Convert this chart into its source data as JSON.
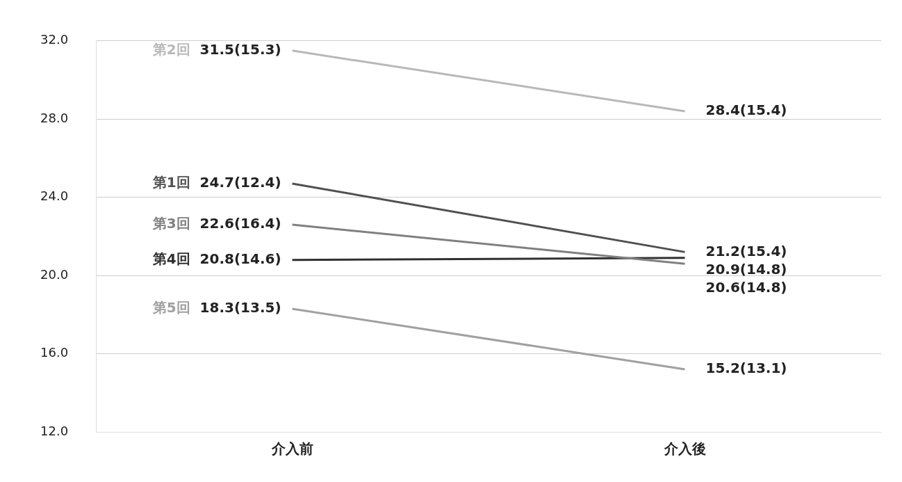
{
  "chart_data": {
    "type": "line",
    "categories": [
      "介入前",
      "介入後"
    ],
    "series": [
      {
        "name": "第1回",
        "color": "#505050",
        "values": [
          24.7,
          21.2
        ],
        "value_labels": [
          "24.7(12.4)",
          "21.2(15.4)"
        ]
      },
      {
        "name": "第2回",
        "color": "#b8b8b8",
        "values": [
          31.5,
          28.4
        ],
        "value_labels": [
          "31.5(15.3)",
          "28.4(15.4)"
        ]
      },
      {
        "name": "第3回",
        "color": "#808080",
        "values": [
          22.6,
          20.6
        ],
        "value_labels": [
          "22.6(16.4)",
          "20.6(14.8)"
        ]
      },
      {
        "name": "第4回",
        "color": "#303030",
        "values": [
          20.8,
          20.9
        ],
        "value_labels": [
          "20.8(14.6)",
          "20.9(14.8)"
        ]
      },
      {
        "name": "第5回",
        "color": "#a0a0a0",
        "values": [
          18.3,
          15.2
        ],
        "value_labels": [
          "18.3(13.5)",
          "15.2(13.1)"
        ]
      }
    ],
    "ylim": [
      12,
      32
    ],
    "yticks": [
      {
        "value": 12,
        "label": "12.0"
      },
      {
        "value": 16,
        "label": "16.0"
      },
      {
        "value": 20,
        "label": "20.0"
      },
      {
        "value": 24,
        "label": "24.0"
      },
      {
        "value": 28,
        "label": "28.0"
      },
      {
        "value": 32,
        "label": "32.0"
      }
    ],
    "grid": "y",
    "marker": "none",
    "line_style": "solid",
    "legend": false
  }
}
